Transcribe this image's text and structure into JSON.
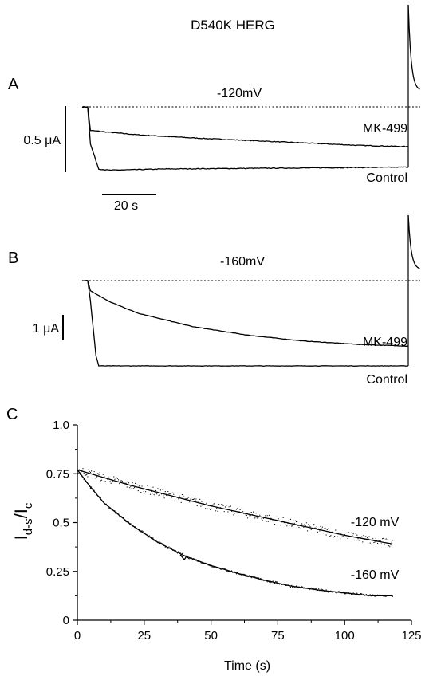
{
  "figure_title": "D540K HERG",
  "panels": {
    "A": {
      "letter": "A",
      "voltage": "-120mV",
      "scale_current": "0.5 μA",
      "scale_time": "20 s",
      "trace_labels": [
        "MK-499",
        "Control"
      ]
    },
    "B": {
      "letter": "B",
      "voltage": "-160mV",
      "scale_current": "1 μA",
      "trace_labels": [
        "MK-499",
        "Control"
      ]
    },
    "C": {
      "letter": "C"
    }
  },
  "chart_data": [
    {
      "type": "line",
      "panel": "A",
      "title": "-120mV",
      "series": [
        {
          "name": "MK-499",
          "points": [
            [
              0,
              0.0
            ],
            [
              2,
              0.0
            ],
            [
              3,
              -0.38
            ],
            [
              10,
              -0.41
            ],
            [
              20,
              -0.45
            ],
            [
              40,
              -0.5
            ],
            [
              60,
              -0.54
            ],
            [
              80,
              -0.58
            ],
            [
              100,
              -0.62
            ],
            [
              118,
              -0.64
            ]
          ]
        },
        {
          "name": "Control",
          "points": [
            [
              0,
              0.0
            ],
            [
              2,
              0.0
            ],
            [
              3,
              -0.6
            ],
            [
              6,
              -1.0
            ],
            [
              10,
              -1.02
            ],
            [
              30,
              -1.0
            ],
            [
              60,
              -0.99
            ],
            [
              90,
              -0.98
            ],
            [
              118,
              -0.97
            ]
          ]
        }
      ]
    },
    {
      "type": "line",
      "panel": "B",
      "title": "-160mV",
      "series": [
        {
          "name": "MK-499",
          "points": [
            [
              0,
              0.0
            ],
            [
              2,
              0.0
            ],
            [
              3,
              -0.3
            ],
            [
              10,
              -0.62
            ],
            [
              20,
              -0.95
            ],
            [
              40,
              -1.35
            ],
            [
              60,
              -1.6
            ],
            [
              80,
              -1.77
            ],
            [
              100,
              -1.87
            ],
            [
              118,
              -1.92
            ]
          ]
        },
        {
          "name": "Control",
          "points": [
            [
              0,
              0.0
            ],
            [
              2,
              0.0
            ],
            [
              3,
              -0.6
            ],
            [
              5,
              -2.2
            ],
            [
              6,
              -2.5
            ],
            [
              30,
              -2.5
            ],
            [
              60,
              -2.5
            ],
            [
              90,
              -2.5
            ],
            [
              118,
              -2.5
            ]
          ]
        }
      ]
    },
    {
      "type": "scatter",
      "panel": "C",
      "xlabel": "Time (s)",
      "ylabel": "Id-s/Ic",
      "xlim": [
        0,
        125
      ],
      "ylim": [
        0,
        1.0
      ],
      "xticks": [
        "0",
        "25",
        "50",
        "75",
        "100",
        "125"
      ],
      "yticks": [
        "0",
        "0.25",
        "0.5",
        "0.75",
        "1.0"
      ],
      "series": [
        {
          "name": "-120 mV",
          "points": [
            [
              0,
              0.77
            ],
            [
              5,
              0.75
            ],
            [
              10,
              0.73
            ],
            [
              20,
              0.69
            ],
            [
              30,
              0.655
            ],
            [
              40,
              0.62
            ],
            [
              50,
              0.585
            ],
            [
              60,
              0.555
            ],
            [
              70,
              0.525
            ],
            [
              80,
              0.495
            ],
            [
              90,
              0.465
            ],
            [
              100,
              0.435
            ],
            [
              110,
              0.41
            ],
            [
              118,
              0.39
            ]
          ]
        },
        {
          "name": "-160 mV",
          "points": [
            [
              0,
              0.77
            ],
            [
              5,
              0.68
            ],
            [
              10,
              0.6
            ],
            [
              20,
              0.49
            ],
            [
              30,
              0.4
            ],
            [
              40,
              0.33
            ],
            [
              50,
              0.28
            ],
            [
              60,
              0.24
            ],
            [
              70,
              0.205
            ],
            [
              80,
              0.175
            ],
            [
              90,
              0.155
            ],
            [
              100,
              0.14
            ],
            [
              110,
              0.125
            ],
            [
              118,
              0.125
            ]
          ]
        }
      ]
    }
  ]
}
